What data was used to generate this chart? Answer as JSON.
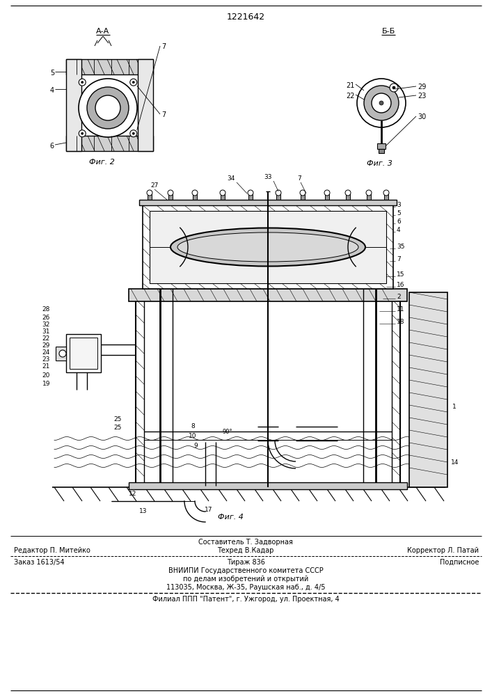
{
  "patent_number": "1221642",
  "footer_line1_center_top": "Составитель Т. Задворная",
  "footer_line1_left": "Редактор П. Митейко",
  "footer_line1_center_bot": "Техред В.Кадар",
  "footer_line1_right": "Корректор Л. Патай",
  "footer_line2_left": "Заказ 1613/54",
  "footer_line2_center": "Тираж 836",
  "footer_line2_right": "Подписное",
  "footer_line3": "ВНИИПИ Государственного комитета СССР",
  "footer_line4": "по делам изобретений и открытий",
  "footer_line5": "113035, Москва, Ж-35, Раушская наб., д. 4/5",
  "footer_line6": "Филиал ППП \"Патент\", г. Ужгород, ул. Проектная, 4",
  "bg_color": "#ffffff"
}
